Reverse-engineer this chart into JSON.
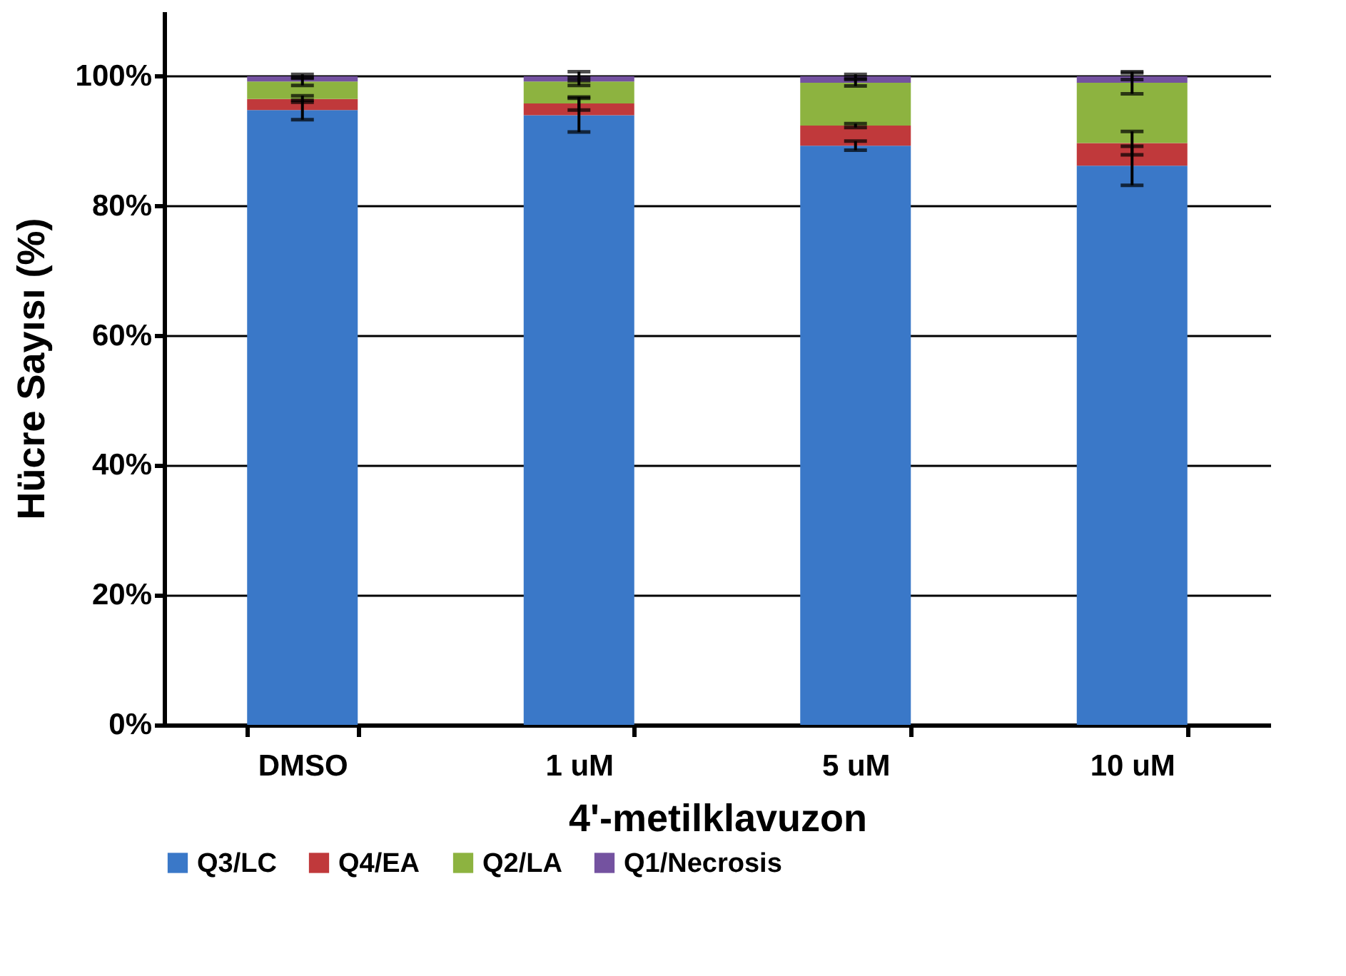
{
  "chart_data": {
    "type": "bar",
    "stacked": true,
    "xlabel": "4'-metilklavuzon",
    "ylabel": "Hücre Sayısı (%)",
    "categories": [
      "DMSO",
      "1 uM",
      "5 uM",
      "10 uM"
    ],
    "series": [
      {
        "name": "Q3/LC",
        "color": "#3a78c8",
        "values": [
          94.8,
          94.0,
          89.3,
          86.2
        ],
        "errors": [
          1.5,
          2.6,
          0.7,
          3.0
        ]
      },
      {
        "name": "Q4/EA",
        "color": "#c0393b",
        "values": [
          1.7,
          1.8,
          3.1,
          3.5
        ],
        "errors": [
          0.5,
          1.0,
          0.3,
          1.8
        ]
      },
      {
        "name": "Q2/LA",
        "color": "#8db340",
        "values": [
          2.7,
          3.4,
          6.6,
          9.3
        ],
        "errors": [
          0.6,
          0.6,
          0.5,
          1.7
        ]
      },
      {
        "name": "Q1/Necrosis",
        "color": "#7452a0",
        "values": [
          0.8,
          0.8,
          1.0,
          1.0
        ],
        "errors": [
          0.3,
          0.7,
          0.3,
          0.5
        ]
      }
    ],
    "ylim": [
      0,
      110
    ],
    "yticks": [
      {
        "value": 0,
        "label": "0%"
      },
      {
        "value": 20,
        "label": "20%"
      },
      {
        "value": 40,
        "label": "40%"
      },
      {
        "value": 60,
        "label": "60%"
      },
      {
        "value": 80,
        "label": "80%"
      },
      {
        "value": 100,
        "label": "100%"
      }
    ],
    "grid": "y",
    "legend": "bottom"
  }
}
